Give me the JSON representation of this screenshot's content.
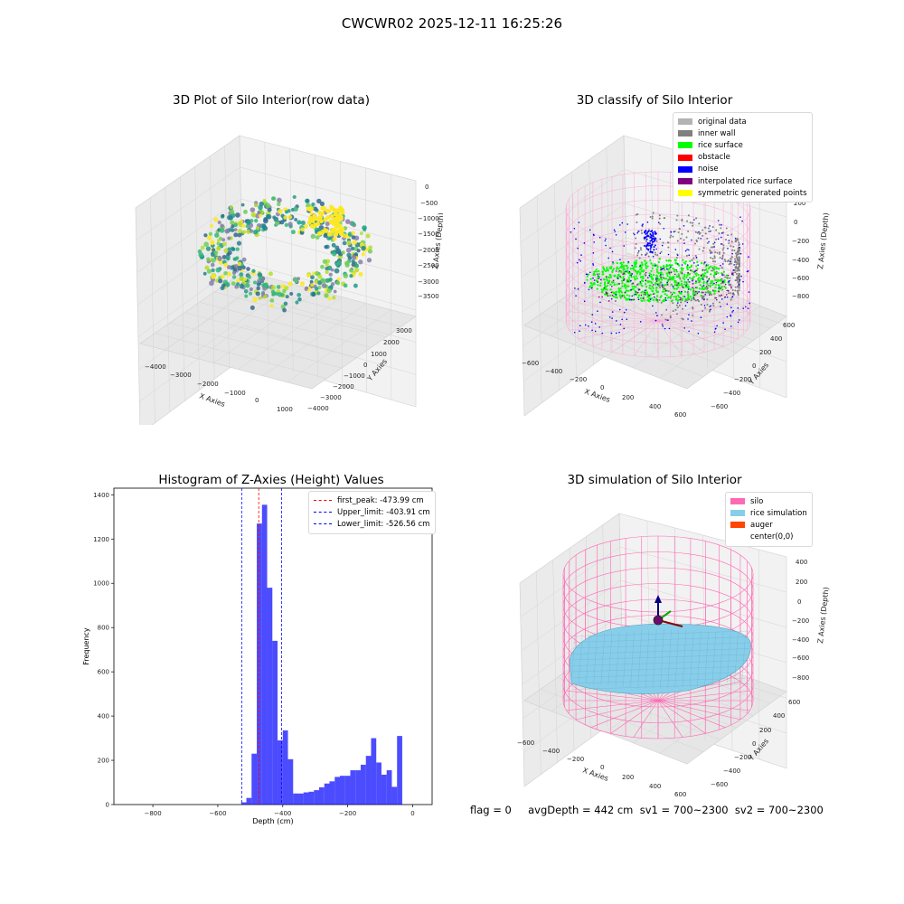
{
  "figure_title": "CWCWR02 2025-12-11 16:25:26",
  "footer": "flag = 0     avgDepth = 442 cm  sv1 = 700~2300  sv2 = 700~2300",
  "chart_data": [
    {
      "type": "scatter",
      "title": "3D Plot of Silo Interior(row data)",
      "xlabel": "X Axies",
      "ylabel": "Y Axies",
      "zlabel": "Z Axies (Depth)",
      "x_ticks": [
        "−4000",
        "−3000",
        "−2000",
        "−1000",
        "0",
        "1000"
      ],
      "y_ticks": [
        "3000",
        "2000",
        "1000",
        "0",
        "−1000",
        "−2000",
        "−3000",
        "−4000"
      ],
      "z_ticks": [
        "0",
        "−500",
        "−1000",
        "−1500",
        "−2000",
        "−2500",
        "−3000",
        "−3500"
      ],
      "colormap": "viridis"
    },
    {
      "type": "scatter",
      "title": "3D classify of Silo Interior",
      "xlabel": "X Axies",
      "ylabel": "Y Axies",
      "zlabel": "Z Axies (Depth)",
      "x_ticks": [
        "−600",
        "−400",
        "−200",
        "0",
        "200",
        "400",
        "600"
      ],
      "y_ticks": [
        "600",
        "400",
        "200",
        "0",
        "−200",
        "−400",
        "−600"
      ],
      "z_ticks": [
        "200",
        "0",
        "−200",
        "−400",
        "−600",
        "−800"
      ],
      "z_top_partial": "00",
      "legend": [
        {
          "label": "original data",
          "color": "#b3b3b3"
        },
        {
          "label": "inner wall",
          "color": "#808080"
        },
        {
          "label": "rice surface",
          "color": "#00ff00"
        },
        {
          "label": "obstacle",
          "color": "#ff0000"
        },
        {
          "label": "noise",
          "color": "#0000ff"
        },
        {
          "label": "interpolated rice surface",
          "color": "#800080"
        },
        {
          "label": "symmetric generated points",
          "color": "#ffff00"
        }
      ]
    },
    {
      "type": "bar",
      "title": "Histogram of Z-Axies (Height) Values",
      "xlabel": "Depth (cm)",
      "ylabel": "Frequency",
      "xlim": [
        -920,
        60
      ],
      "ylim": [
        0,
        1430
      ],
      "x_ticks": [
        -800,
        -600,
        -400,
        -200,
        0
      ],
      "x_tick_labels": [
        "−800",
        "−600",
        "−400",
        "−200",
        "0"
      ],
      "y_ticks": [
        0,
        200,
        400,
        600,
        800,
        1000,
        1200,
        1400
      ],
      "bin_width": 16,
      "bins": [
        {
          "x": -528,
          "value": 10
        },
        {
          "x": -512,
          "value": 30
        },
        {
          "x": -496,
          "value": 230
        },
        {
          "x": -480,
          "value": 1270
        },
        {
          "x": -464,
          "value": 1355
        },
        {
          "x": -448,
          "value": 980
        },
        {
          "x": -432,
          "value": 740
        },
        {
          "x": -416,
          "value": 290
        },
        {
          "x": -400,
          "value": 335
        },
        {
          "x": -384,
          "value": 205
        },
        {
          "x": -368,
          "value": 50
        },
        {
          "x": -352,
          "value": 50
        },
        {
          "x": -336,
          "value": 55
        },
        {
          "x": -320,
          "value": 58
        },
        {
          "x": -304,
          "value": 65
        },
        {
          "x": -288,
          "value": 78
        },
        {
          "x": -272,
          "value": 95
        },
        {
          "x": -256,
          "value": 105
        },
        {
          "x": -240,
          "value": 125
        },
        {
          "x": -224,
          "value": 130
        },
        {
          "x": -208,
          "value": 130
        },
        {
          "x": -192,
          "value": 155
        },
        {
          "x": -176,
          "value": 155
        },
        {
          "x": -160,
          "value": 180
        },
        {
          "x": -144,
          "value": 220
        },
        {
          "x": -128,
          "value": 300
        },
        {
          "x": -112,
          "value": 190
        },
        {
          "x": -96,
          "value": 135
        },
        {
          "x": -80,
          "value": 155
        },
        {
          "x": -64,
          "value": 80
        },
        {
          "x": -48,
          "value": 310
        }
      ],
      "bar_color": "#0000ff",
      "bar_opacity": 0.7,
      "vlines": [
        {
          "x": -473.99,
          "color": "#ff0000",
          "label": "first_peak: -473.99 cm"
        },
        {
          "x": -403.91,
          "color": "#0000ff",
          "label": "Upper_limit: -403.91 cm"
        },
        {
          "x": -526.56,
          "color": "#0000ff",
          "label": "Lower_limit: -526.56 cm"
        }
      ],
      "legend_position": "top-right"
    },
    {
      "type": "scatter",
      "title": "3D simulation of Silo Interior",
      "xlabel": "X Axies",
      "ylabel": "Y Axies",
      "zlabel": "Z Axies (Depth)",
      "x_ticks": [
        "−600",
        "−400",
        "−200",
        "0",
        "200",
        "400",
        "600"
      ],
      "y_ticks": [
        "600",
        "400",
        "200",
        "0",
        "−200",
        "−400",
        "−600"
      ],
      "z_ticks": [
        "400",
        "200",
        "0",
        "−200",
        "−400",
        "−600",
        "−800"
      ],
      "legend": [
        {
          "label": "silo",
          "color": "#ff69b4"
        },
        {
          "label": "rice simulation",
          "color": "#87ceeb"
        },
        {
          "label": "auger",
          "color": "#ff4500"
        },
        {
          "label": "center(0,0)",
          "color": ""
        }
      ]
    }
  ]
}
